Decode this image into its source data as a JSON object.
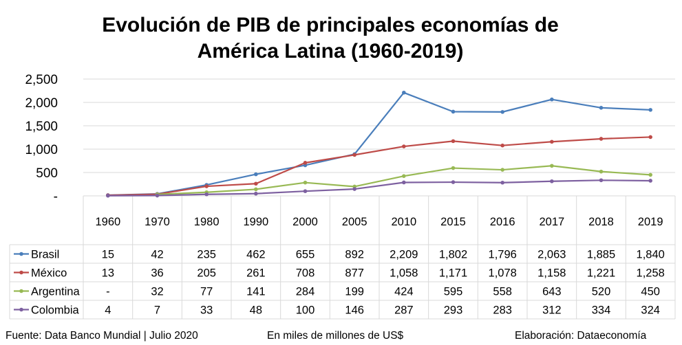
{
  "chart_data": {
    "type": "line",
    "title_line1": "Evolución de PIB de principales economías de",
    "title_line2": "América Latina (1960-2019)",
    "categories": [
      "1960",
      "1970",
      "1980",
      "1990",
      "2000",
      "2005",
      "2010",
      "2015",
      "2016",
      "2017",
      "2018",
      "2019"
    ],
    "y_ticks": [
      "-",
      "500",
      "1,000",
      "1,500",
      "2,000",
      "2,500"
    ],
    "ylim": [
      0,
      2500
    ],
    "grid": true,
    "legend": "data-table",
    "series": [
      {
        "name": "Brasil",
        "color": "#4a7ebb",
        "values": [
          15,
          42,
          235,
          462,
          655,
          892,
          2209,
          1802,
          1796,
          2063,
          1885,
          1840
        ],
        "labels": [
          "15",
          "42",
          "235",
          "462",
          "655",
          "892",
          "2,209",
          "1,802",
          "1,796",
          "2,063",
          "1,885",
          "1,840"
        ]
      },
      {
        "name": "México",
        "color": "#be4b48",
        "values": [
          13,
          36,
          205,
          261,
          708,
          877,
          1058,
          1171,
          1078,
          1158,
          1221,
          1258
        ],
        "labels": [
          "13",
          "36",
          "205",
          "261",
          "708",
          "877",
          "1,058",
          "1,171",
          "1,078",
          "1,158",
          "1,221",
          "1,258"
        ]
      },
      {
        "name": "Argentina",
        "color": "#98b954",
        "values": [
          null,
          32,
          77,
          141,
          284,
          199,
          424,
          595,
          558,
          643,
          520,
          450
        ],
        "labels": [
          "-",
          "32",
          "77",
          "141",
          "284",
          "199",
          "424",
          "595",
          "558",
          "643",
          "520",
          "450"
        ]
      },
      {
        "name": "Colombia",
        "color": "#7d60a0",
        "values": [
          4,
          7,
          33,
          48,
          100,
          146,
          287,
          293,
          283,
          312,
          334,
          324
        ],
        "labels": [
          "4",
          "7",
          "33",
          "48",
          "100",
          "146",
          "287",
          "293",
          "283",
          "312",
          "334",
          "324"
        ]
      }
    ]
  },
  "footer": {
    "source": "Fuente: Data Banco Mundial | Julio 2020",
    "units": "En miles de millones de US$",
    "credit": "Elaboración: Dataeconomía"
  }
}
